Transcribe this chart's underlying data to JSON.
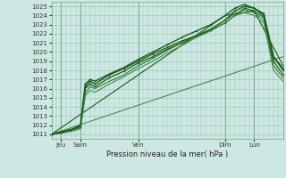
{
  "title": "Pression niveau de la mer( hPa )",
  "ylabel_ticks": [
    1011,
    1012,
    1013,
    1014,
    1015,
    1016,
    1017,
    1018,
    1019,
    1020,
    1021,
    1022,
    1023,
    1024,
    1025
  ],
  "ylim": [
    1010.5,
    1025.5
  ],
  "xlim": [
    0,
    96
  ],
  "bg_color": "#cde8e2",
  "grid_color": "#99bfb5",
  "line_color_dark": "#1a5c1a",
  "line_color_mid": "#2d7a2d",
  "line_color_light": "#5aaa5a",
  "x_tick_positions": [
    4,
    12,
    36,
    72,
    84
  ],
  "x_tick_labels": [
    "Jeu",
    "Sam",
    "Ven",
    "Dim",
    "Lun"
  ],
  "vline_positions": [
    4,
    12,
    36,
    72,
    84
  ],
  "lines": [
    {
      "x": [
        0,
        96
      ],
      "y": [
        1011.0,
        1019.5
      ],
      "lw": 0.8,
      "color": "#4a8a4a"
    },
    {
      "x": [
        0,
        72,
        84,
        96
      ],
      "y": [
        1011.0,
        1024.0,
        1024.5,
        1018.5
      ],
      "lw": 0.8,
      "color": "#1a5c1a"
    },
    {
      "x": [
        0,
        4,
        8,
        12,
        14,
        16,
        18,
        24,
        30,
        36,
        42,
        48,
        54,
        60,
        66,
        72,
        76,
        80,
        84,
        88,
        92,
        96
      ],
      "y": [
        1011.0,
        1011.3,
        1011.5,
        1011.8,
        1016.2,
        1016.8,
        1016.5,
        1017.5,
        1018.2,
        1019.0,
        1019.8,
        1020.5,
        1021.2,
        1021.8,
        1022.5,
        1023.5,
        1024.5,
        1025.0,
        1024.8,
        1024.2,
        1019.5,
        1018.0
      ],
      "lw": 1.0,
      "color": "#1a5c1a",
      "marker": "+"
    },
    {
      "x": [
        0,
        4,
        8,
        12,
        14,
        16,
        18,
        24,
        30,
        36,
        42,
        48,
        54,
        60,
        66,
        72,
        76,
        80,
        84,
        88,
        92,
        96
      ],
      "y": [
        1011.0,
        1011.2,
        1011.5,
        1011.8,
        1016.0,
        1016.5,
        1016.2,
        1017.2,
        1017.9,
        1018.8,
        1019.5,
        1020.3,
        1021.0,
        1021.7,
        1022.4,
        1023.2,
        1024.0,
        1024.8,
        1024.5,
        1023.8,
        1019.0,
        1017.5
      ],
      "lw": 0.9,
      "color": "#1a5c1a",
      "marker": "+"
    },
    {
      "x": [
        0,
        4,
        8,
        12,
        14,
        16,
        18,
        24,
        30,
        36,
        42,
        48,
        54,
        60,
        66,
        72,
        76,
        80,
        84,
        88,
        92,
        96
      ],
      "y": [
        1011.0,
        1011.2,
        1011.4,
        1011.7,
        1015.5,
        1016.2,
        1016.0,
        1016.8,
        1017.5,
        1018.5,
        1019.3,
        1020.2,
        1021.0,
        1021.8,
        1022.5,
        1023.5,
        1024.2,
        1024.6,
        1024.3,
        1023.5,
        1018.5,
        1017.2
      ],
      "lw": 0.8,
      "color": "#2d7a2d"
    },
    {
      "x": [
        0,
        4,
        8,
        12,
        14,
        16,
        18,
        24,
        30,
        36,
        42,
        48,
        54,
        60,
        66,
        72,
        76,
        80,
        84,
        88,
        92,
        96
      ],
      "y": [
        1011.0,
        1011.1,
        1011.3,
        1011.6,
        1015.2,
        1015.8,
        1015.6,
        1016.5,
        1017.3,
        1018.2,
        1019.0,
        1019.9,
        1020.7,
        1021.6,
        1022.3,
        1023.2,
        1024.0,
        1024.3,
        1024.0,
        1023.2,
        1018.0,
        1016.8
      ],
      "lw": 0.8,
      "color": "#4a8a4a"
    },
    {
      "x": [
        0,
        4,
        8,
        12,
        14,
        16,
        18,
        24,
        30,
        36,
        42,
        48,
        54,
        60,
        66,
        72,
        76,
        80,
        84,
        88,
        92,
        96
      ],
      "y": [
        1011.0,
        1011.2,
        1011.5,
        1012.0,
        1016.5,
        1017.0,
        1016.8,
        1017.6,
        1018.3,
        1019.2,
        1020.0,
        1020.8,
        1021.6,
        1022.3,
        1023.0,
        1024.0,
        1024.8,
        1025.2,
        1024.8,
        1024.0,
        1019.5,
        1018.2
      ],
      "lw": 1.0,
      "color": "#1a5c1a",
      "marker": "+"
    }
  ]
}
